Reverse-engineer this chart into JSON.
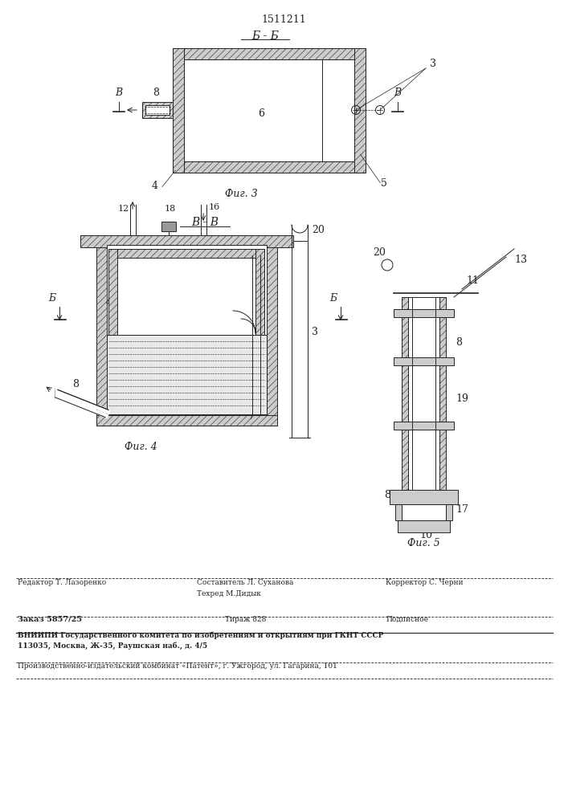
{
  "patent_number": "1511211",
  "fig3_label": "Фиг. 3",
  "fig4_label": "Фиг. 4",
  "fig5_label": "Фиг. 5",
  "section_BB": "Б - Б",
  "section_VV": "В - В",
  "background": "#ffffff",
  "lc": "#222222",
  "footer_editor": "Редактор Т. Лазоренко",
  "footer_composer": "Составитель Л. Суханова",
  "footer_tech": "Техред М.Дидык",
  "footer_corrector": "Корректор С. Черни",
  "footer_order": "Заказ 5857/25",
  "footer_tirazh": "Тираж 828",
  "footer_podp": "Подписное",
  "footer_vniip": "ВНИИПИ Государственного комитета по изобретениям и открытиям при ГКНТ СССР",
  "footer_addr": "113035, Москва, Ж-35, Раушская наб., д. 4/5",
  "footer_patent": "Производственно-издательский комбинат «Патент», г. Ужгород, ул. Гагарина, 101"
}
